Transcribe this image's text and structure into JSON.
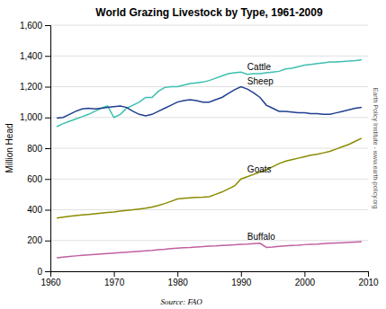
{
  "chart_data": {
    "type": "line",
    "title": "World Grazing Livestock by Type, 1961-2009",
    "ylabel": "Million Head",
    "annotations": [
      "Source: FAO",
      "Earth Policy Institute - www.earth-policy.org"
    ],
    "x": [
      1961,
      1962,
      1963,
      1964,
      1965,
      1966,
      1967,
      1968,
      1969,
      1970,
      1971,
      1972,
      1973,
      1974,
      1975,
      1976,
      1977,
      1978,
      1979,
      1980,
      1981,
      1982,
      1983,
      1984,
      1985,
      1986,
      1987,
      1988,
      1989,
      1990,
      1991,
      1992,
      1993,
      1994,
      1995,
      1996,
      1997,
      1998,
      1999,
      2000,
      2001,
      2002,
      2003,
      2004,
      2005,
      2006,
      2007,
      2008,
      2009
    ],
    "series": [
      {
        "name": "Cattle",
        "color": "#3cbfb0",
        "values": [
          940,
          960,
          975,
          990,
          1005,
          1020,
          1040,
          1060,
          1075,
          1000,
          1020,
          1060,
          1080,
          1100,
          1130,
          1130,
          1170,
          1195,
          1200,
          1200,
          1210,
          1220,
          1225,
          1230,
          1240,
          1255,
          1270,
          1285,
          1290,
          1295,
          1280,
          1285,
          1285,
          1290,
          1295,
          1300,
          1315,
          1320,
          1330,
          1340,
          1345,
          1350,
          1355,
          1360,
          1360,
          1363,
          1366,
          1370,
          1375
        ]
      },
      {
        "name": "Sheep",
        "color": "#1f3f8f",
        "values": [
          995,
          1000,
          1020,
          1040,
          1055,
          1060,
          1055,
          1060,
          1065,
          1070,
          1075,
          1065,
          1040,
          1020,
          1010,
          1020,
          1040,
          1060,
          1080,
          1100,
          1110,
          1115,
          1110,
          1100,
          1100,
          1115,
          1130,
          1155,
          1180,
          1200,
          1185,
          1160,
          1130,
          1080,
          1060,
          1040,
          1040,
          1035,
          1030,
          1030,
          1025,
          1025,
          1020,
          1020,
          1030,
          1040,
          1050,
          1060,
          1065
        ]
      },
      {
        "name": "Goats",
        "color": "#8b8b00",
        "values": [
          346,
          352,
          358,
          362,
          366,
          370,
          374,
          378,
          382,
          386,
          391,
          396,
          400,
          405,
          410,
          418,
          428,
          440,
          455,
          470,
          475,
          478,
          480,
          482,
          485,
          500,
          515,
          535,
          555,
          600,
          615,
          630,
          645,
          660,
          680,
          700,
          715,
          725,
          735,
          745,
          755,
          760,
          770,
          780,
          795,
          810,
          825,
          845,
          865
        ]
      },
      {
        "name": "Buffalo",
        "color": "#c060a0",
        "values": [
          88,
          92,
          96,
          100,
          103,
          106,
          109,
          112,
          115,
          118,
          121,
          124,
          127,
          130,
          133,
          136,
          140,
          143,
          147,
          150,
          153,
          155,
          158,
          160,
          163,
          165,
          168,
          170,
          172,
          175,
          177,
          180,
          182,
          155,
          158,
          162,
          165,
          168,
          170,
          173,
          175,
          177,
          180,
          182,
          184,
          186,
          188,
          190,
          192
        ]
      }
    ],
    "xlim": [
      1960,
      2010
    ],
    "ylim": [
      0,
      1600
    ],
    "xticks": [
      1960,
      1970,
      1980,
      1990,
      2000,
      2010
    ],
    "yticks": [
      0,
      200,
      400,
      600,
      800,
      {
        "value": 1000,
        "label": "1,000"
      },
      {
        "value": 1200,
        "label": "1,200"
      },
      {
        "value": 1400,
        "label": "1,400"
      },
      {
        "value": 1600,
        "label": "1,600"
      }
    ],
    "grid": true
  }
}
